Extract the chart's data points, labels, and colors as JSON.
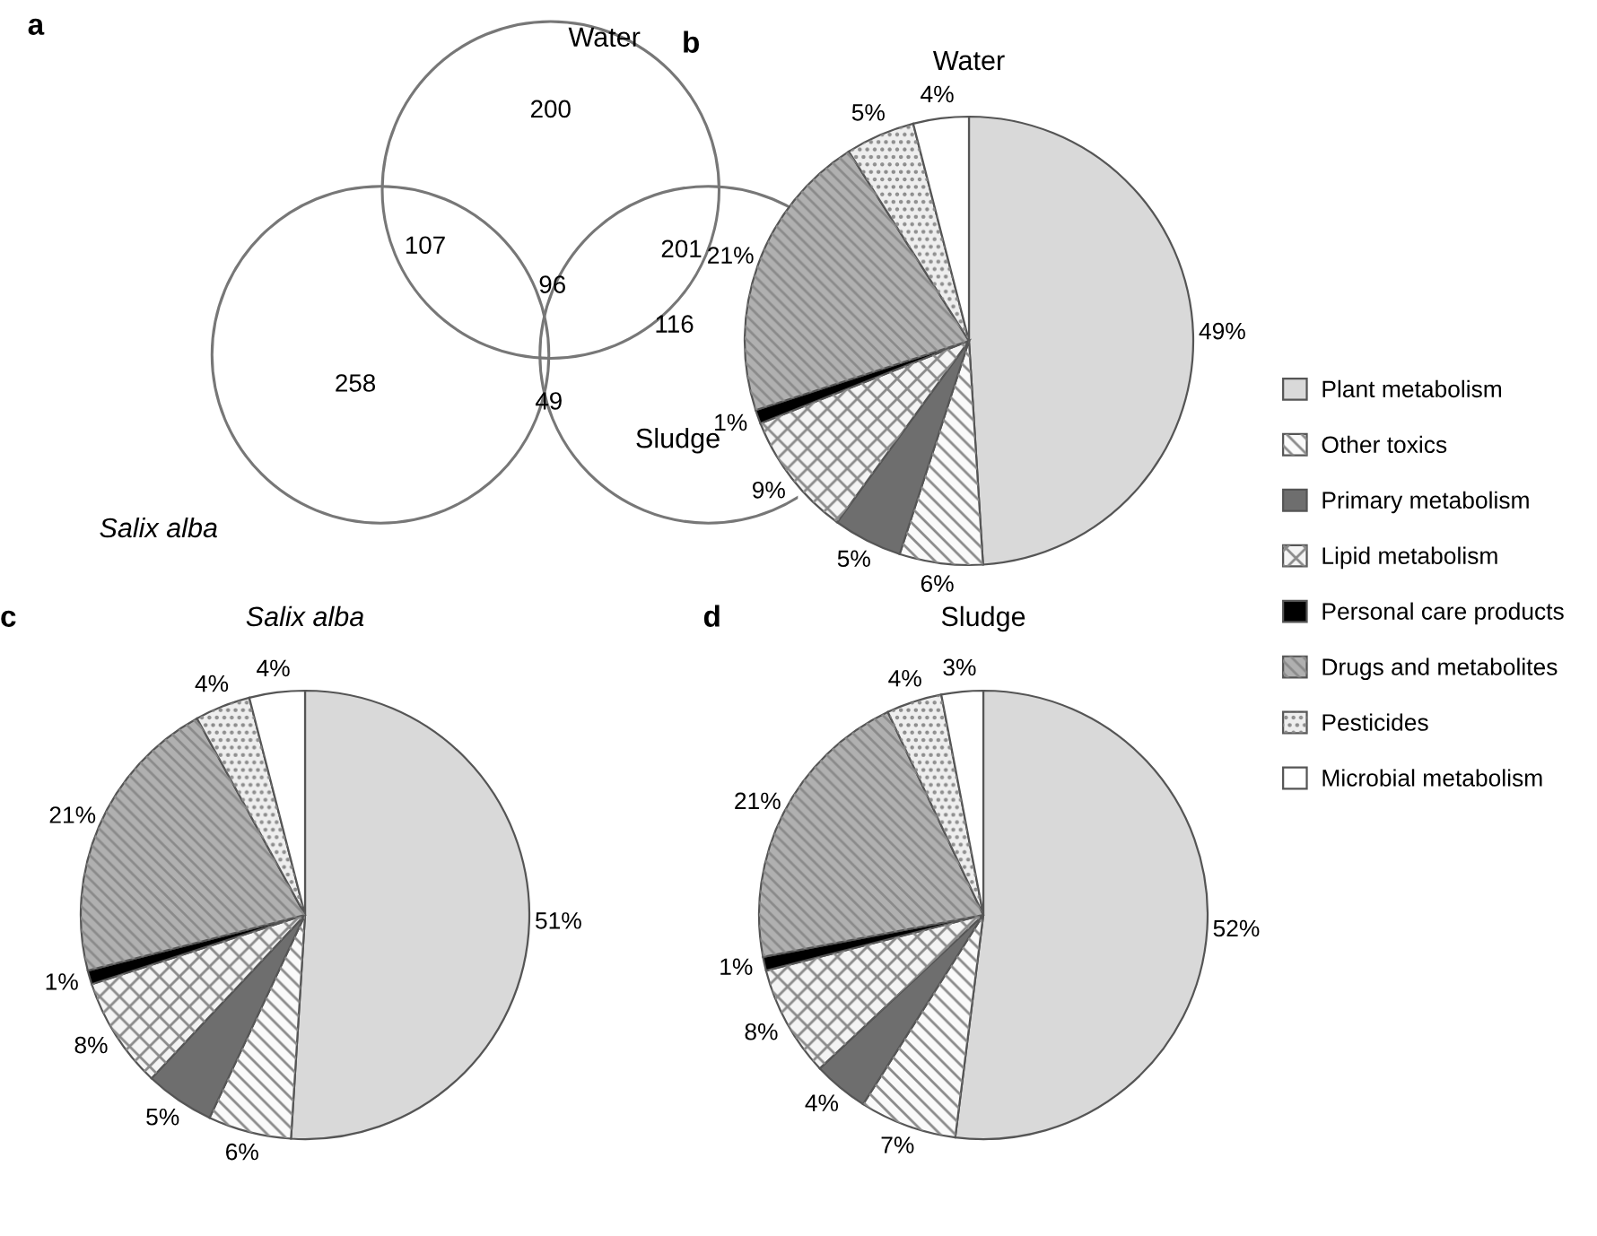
{
  "chart_data": [
    {
      "type": "other",
      "annotations": [
        "a",
        "Water",
        "Salix alba",
        "Sludge",
        "200",
        "258",
        "116",
        "107",
        "201",
        "49",
        "96"
      ]
    },
    {
      "type": "pie",
      "title": "Water",
      "annotations": [
        "b"
      ],
      "legend": "right",
      "categories": [
        "Plant metabolism",
        "Other toxics",
        "Primary metabolism",
        "Lipid metabolism",
        "Personal care products",
        "Drugs and metabolites",
        "Pesticides",
        "Microbial metabolism"
      ],
      "colors": [
        "#d9d9d9",
        "#fafafa",
        "#6e6e6e",
        "#f4f4f4",
        "#000000",
        "#b0b0b0",
        "#eeeeee",
        "#ffffff"
      ],
      "values": [
        49,
        6,
        5,
        9,
        1,
        21,
        5,
        4
      ],
      "value_labels": [
        "49%",
        "6%",
        "5%",
        "9%",
        "1%",
        "21%",
        "5%",
        "4%"
      ]
    },
    {
      "type": "pie",
      "title": "Salix alba",
      "annotations": [
        "c"
      ],
      "categories": [
        null,
        null,
        null,
        null,
        null,
        null,
        null,
        null
      ],
      "colors": [
        "#d9d9d9",
        "#fafafa",
        "#6e6e6e",
        "#f4f4f4",
        "#000000",
        "#b0b0b0",
        "#eeeeee",
        "#ffffff"
      ],
      "values": [
        51,
        6,
        5,
        8,
        1,
        21,
        4,
        4
      ],
      "value_labels": [
        "51%",
        "6%",
        "5%",
        "8%",
        "1%",
        "21%",
        "4%",
        "4%"
      ]
    },
    {
      "type": "pie",
      "title": "Sludge",
      "annotations": [
        "d"
      ],
      "categories": [
        null,
        null,
        null,
        null,
        null,
        null,
        null,
        null
      ],
      "colors": [
        "#d9d9d9",
        "#fafafa",
        "#6e6e6e",
        "#f4f4f4",
        "#000000",
        "#b0b0b0",
        "#eeeeee",
        "#ffffff"
      ],
      "values": [
        52,
        7,
        4,
        8,
        1,
        21,
        4,
        3
      ],
      "value_labels": [
        "52%",
        "7%",
        "4%",
        "8%",
        "1%",
        "21%",
        "4%",
        "3%"
      ]
    }
  ]
}
